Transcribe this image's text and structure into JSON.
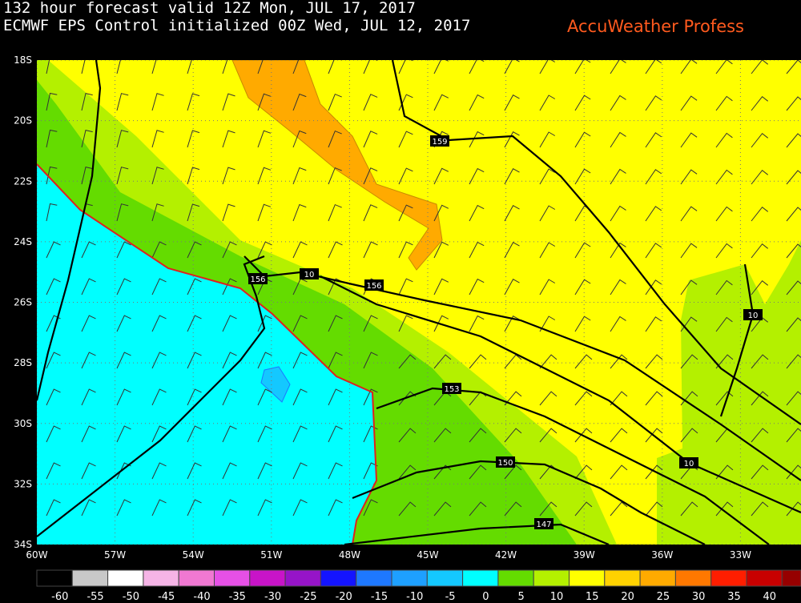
{
  "header": {
    "lines": [
      "132 hour forecast valid 12Z Mon, JUL 17, 2017",
      "ECMWF EPS Control initialized 00Z Wed, JUL 12, 2017"
    ],
    "brand": "AccuWeather Profess"
  },
  "map": {
    "lat_labels": [
      "18S",
      "20S",
      "22S",
      "24S",
      "26S",
      "28S",
      "30S",
      "32S",
      "34S"
    ],
    "lon_labels": [
      "60W",
      "57W",
      "54W",
      "51W",
      "48W",
      "45W",
      "42W",
      "39W",
      "36W",
      "33W"
    ],
    "contour_labels": [
      "159",
      "156",
      "10",
      "156",
      "153",
      "150",
      "147",
      "10",
      "10"
    ]
  },
  "legend": {
    "labels": [
      "-60",
      "-55",
      "-50",
      "-45",
      "-40",
      "-35",
      "-30",
      "-25",
      "-20",
      "-15",
      "-10",
      "-5",
      "0",
      "5",
      "10",
      "15",
      "20",
      "25",
      "30",
      "35",
      "40"
    ],
    "colors": [
      "#000000",
      "#c8c8c8",
      "#ffffff",
      "#f5b4e6",
      "#f078d2",
      "#e650e6",
      "#c814c8",
      "#9614c8",
      "#1414ff",
      "#1e78ff",
      "#1ea0ff",
      "#14c8ff",
      "#00ffff",
      "#64dc00",
      "#b4f000",
      "#ffff00",
      "#ffd200",
      "#ffaa00",
      "#ff7800",
      "#ff1e00",
      "#c80000",
      "#960000"
    ]
  }
}
